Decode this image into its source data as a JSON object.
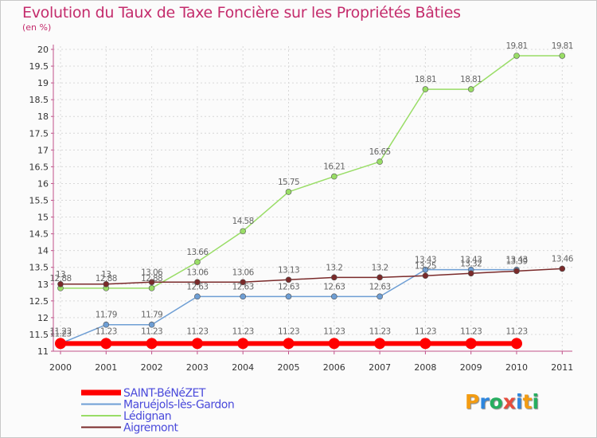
{
  "header": {
    "title": "Evolution du Taux de Taxe Foncière sur les Propriétés Bâties",
    "unit": "(en %)"
  },
  "logo": {
    "text": "Proxiti",
    "colors": [
      "#f39c12",
      "#2e86de",
      "#27ae60",
      "#e74c3c",
      "#2e86de",
      "#f39c12",
      "#27ae60"
    ]
  },
  "chart_data": {
    "type": "line",
    "title": "Evolution du Taux de Taxe Foncière sur les Propriétés Bâties",
    "ylabel": "(en %)",
    "xlabel": "",
    "ylim": [
      11,
      20
    ],
    "ytick_step": 0.5,
    "x": [
      2000,
      2001,
      2002,
      2003,
      2004,
      2005,
      2006,
      2007,
      2008,
      2009,
      2010,
      2011
    ],
    "legend_position": "bottom-left",
    "series": [
      {
        "name": "SAINT-BéNéZET",
        "color": "#ff0000",
        "line_width": 6,
        "marker_radius": 7,
        "values": [
          11.23,
          11.23,
          11.23,
          11.23,
          11.23,
          11.23,
          11.23,
          11.23,
          11.23,
          11.23,
          11.23,
          null
        ],
        "labels": [
          "11.23",
          "11.23",
          "11.23",
          "11.23",
          "11.23",
          "11.23",
          "11.23",
          "11.23",
          "11.23",
          "11.23",
          "11.23",
          ""
        ]
      },
      {
        "name": "Maruéjols-lès-Gardon",
        "color": "#6e9ed4",
        "line_width": 1.5,
        "marker_radius": 3.5,
        "values": [
          11.23,
          11.79,
          11.79,
          12.63,
          12.63,
          12.63,
          12.63,
          12.63,
          13.43,
          13.43,
          13.43,
          null
        ],
        "labels": [
          "11.23",
          "11.79",
          "11.79",
          "12.63",
          "12.63",
          "12.63",
          "12.63",
          "12.63",
          "13.43",
          "13.43",
          "13.43",
          ""
        ]
      },
      {
        "name": "Lédignan",
        "color": "#99dd66",
        "line_width": 1.5,
        "marker_radius": 3.5,
        "values": [
          12.88,
          12.88,
          12.88,
          13.66,
          14.58,
          15.75,
          16.21,
          16.65,
          18.81,
          18.81,
          19.81,
          19.81
        ],
        "labels": [
          "12.88",
          "12.88",
          "12.88",
          "13.66",
          "14.58",
          "15.75",
          "16.21",
          "16.65",
          "18.81",
          "18.81",
          "19.81",
          "19.81"
        ]
      },
      {
        "name": "Aigremont",
        "color": "#7a2a2a",
        "line_width": 1.5,
        "marker_radius": 3.5,
        "values": [
          13,
          13,
          13.06,
          13.06,
          13.06,
          13.13,
          13.2,
          13.2,
          13.25,
          13.32,
          13.39,
          13.46
        ],
        "labels": [
          "13",
          "13",
          "13.06",
          "13.06",
          "13.06",
          "13.13",
          "13.2",
          "13.2",
          "13.25",
          "13.32",
          "13.39",
          "13.46"
        ]
      }
    ]
  }
}
